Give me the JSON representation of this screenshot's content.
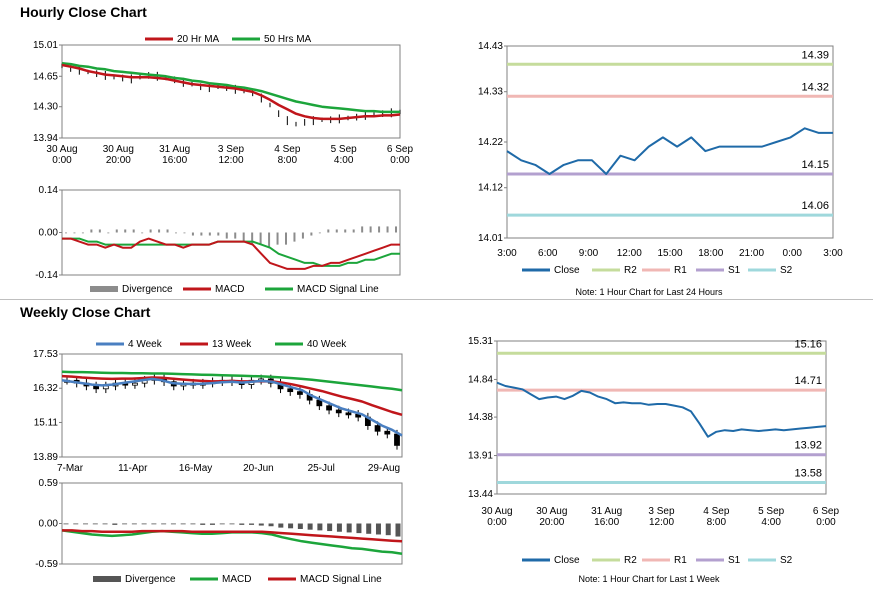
{
  "colors": {
    "ma20": "#c0161b",
    "ma50": "#1ca53b",
    "close": "#1f6aa8",
    "r2": "#c5dc9c",
    "r1": "#f0b7b4",
    "s1": "#b3a0cf",
    "s2": "#9fd8dc",
    "wk4": "#4a7fc1",
    "wk13": "#c0161b",
    "wk40": "#1ca53b",
    "divergence": "#8c8c8c"
  },
  "sections": {
    "hourly_title": "Hourly Close Chart",
    "weekly_title": "Weekly Close Chart"
  },
  "chart_data": [
    {
      "id": "hourly_ma",
      "type": "line",
      "legend": [
        "20 Hr MA",
        "50 Hrs MA"
      ],
      "yticks": [
        "15.01",
        "14.65",
        "14.30",
        "13.94"
      ],
      "ylim": [
        13.94,
        15.01
      ],
      "xticks": [
        [
          "30 Aug",
          "0:00"
        ],
        [
          "30 Aug",
          "20:00"
        ],
        [
          "31 Aug",
          "16:00"
        ],
        [
          "3 Sep",
          "12:00"
        ],
        [
          "4 Sep",
          "8:00"
        ],
        [
          "5 Sep",
          "4:00"
        ],
        [
          "6 Sep",
          "0:00"
        ]
      ],
      "price": [
        14.77,
        14.74,
        14.72,
        14.7,
        14.68,
        14.66,
        14.64,
        14.63,
        14.62,
        14.64,
        14.66,
        14.65,
        14.63,
        14.61,
        14.58,
        14.56,
        14.53,
        14.52,
        14.53,
        14.52,
        14.5,
        14.48,
        14.46,
        14.4,
        14.32,
        14.22,
        14.14,
        14.1,
        14.12,
        14.14,
        14.15,
        14.15,
        14.16,
        14.17,
        14.18,
        14.2,
        14.21,
        14.22,
        14.23,
        14.24
      ],
      "series": [
        {
          "name": "20 Hr MA",
          "values": [
            14.78,
            14.76,
            14.74,
            14.71,
            14.69,
            14.67,
            14.66,
            14.65,
            14.64,
            14.64,
            14.64,
            14.63,
            14.62,
            14.6,
            14.58,
            14.56,
            14.55,
            14.54,
            14.53,
            14.52,
            14.51,
            14.49,
            14.47,
            14.43,
            14.38,
            14.32,
            14.27,
            14.22,
            14.19,
            14.17,
            14.16,
            14.16,
            14.16,
            14.17,
            14.18,
            14.19,
            14.19,
            14.2,
            14.2,
            14.21
          ]
        },
        {
          "name": "50 Hrs MA",
          "values": [
            14.8,
            14.79,
            14.77,
            14.76,
            14.74,
            14.73,
            14.71,
            14.7,
            14.69,
            14.68,
            14.67,
            14.66,
            14.65,
            14.63,
            14.62,
            14.6,
            14.59,
            14.57,
            14.56,
            14.55,
            14.53,
            14.52,
            14.5,
            14.48,
            14.45,
            14.42,
            14.39,
            14.36,
            14.34,
            14.32,
            14.3,
            14.29,
            14.28,
            14.27,
            14.26,
            14.25,
            14.25,
            14.24,
            14.24,
            14.24
          ]
        }
      ]
    },
    {
      "id": "hourly_macd",
      "type": "line",
      "legend": [
        "Divergence",
        "MACD",
        "MACD Signal Line"
      ],
      "yticks": [
        "0.14",
        "0.00",
        "-0.14"
      ],
      "ylim": [
        -0.14,
        0.14
      ],
      "divergence": [
        0.0,
        0.0,
        0.0,
        0.01,
        0.01,
        0.0,
        0.01,
        0.01,
        0.01,
        0.0,
        0.01,
        0.01,
        0.01,
        0.0,
        0.0,
        -0.01,
        -0.01,
        -0.01,
        -0.01,
        -0.02,
        -0.02,
        -0.03,
        -0.04,
        -0.04,
        -0.05,
        -0.04,
        -0.04,
        -0.03,
        -0.02,
        -0.01,
        0.0,
        0.01,
        0.01,
        0.01,
        0.01,
        0.02,
        0.02,
        0.02,
        0.02,
        0.02
      ],
      "series": [
        {
          "name": "MACD",
          "values": [
            -0.02,
            -0.02,
            -0.03,
            -0.04,
            -0.04,
            -0.05,
            -0.04,
            -0.05,
            -0.05,
            -0.03,
            -0.02,
            -0.03,
            -0.04,
            -0.04,
            -0.05,
            -0.04,
            -0.04,
            -0.04,
            -0.03,
            -0.03,
            -0.03,
            -0.03,
            -0.04,
            -0.07,
            -0.1,
            -0.11,
            -0.12,
            -0.12,
            -0.12,
            -0.11,
            -0.11,
            -0.1,
            -0.1,
            -0.09,
            -0.08,
            -0.07,
            -0.06,
            -0.05,
            -0.04,
            -0.04
          ]
        },
        {
          "name": "MACD Signal Line",
          "values": [
            -0.02,
            -0.02,
            -0.02,
            -0.03,
            -0.03,
            -0.04,
            -0.04,
            -0.04,
            -0.04,
            -0.04,
            -0.04,
            -0.04,
            -0.04,
            -0.04,
            -0.04,
            -0.04,
            -0.04,
            -0.04,
            -0.03,
            -0.03,
            -0.03,
            -0.03,
            -0.03,
            -0.04,
            -0.05,
            -0.07,
            -0.08,
            -0.09,
            -0.1,
            -0.1,
            -0.11,
            -0.11,
            -0.11,
            -0.1,
            -0.1,
            -0.09,
            -0.09,
            -0.08,
            -0.07,
            -0.07
          ]
        }
      ]
    },
    {
      "id": "hourly_levels",
      "type": "line",
      "title_note": "Note: 1 Hour Chart for Last 24 Hours",
      "yticks": [
        "14.43",
        "14.33",
        "14.22",
        "14.12",
        "14.01"
      ],
      "ylim": [
        14.01,
        14.43
      ],
      "xticks": [
        "3:00",
        "6:00",
        "9:00",
        "12:00",
        "15:00",
        "18:00",
        "21:00",
        "0:00",
        "3:00"
      ],
      "legend": [
        "Close",
        "R2",
        "R1",
        "S1",
        "S2"
      ],
      "levels": {
        "R2": 14.39,
        "R1": 14.32,
        "S1": 14.15,
        "S2": 14.06
      },
      "level_labels": {
        "R2": "14.39",
        "R1": "14.32",
        "S1": "14.15",
        "S2": "14.06"
      },
      "close": [
        14.2,
        14.18,
        14.17,
        14.15,
        14.17,
        14.18,
        14.18,
        14.15,
        14.19,
        14.18,
        14.21,
        14.23,
        14.21,
        14.23,
        14.2,
        14.21,
        14.21,
        14.21,
        14.21,
        14.22,
        14.23,
        14.25,
        14.24,
        14.24
      ]
    },
    {
      "id": "weekly_ma",
      "type": "line",
      "legend": [
        "4 Week",
        "13 Week",
        "40 Week"
      ],
      "yticks": [
        "17.53",
        "16.32",
        "15.11",
        "13.89"
      ],
      "ylim": [
        13.89,
        17.53
      ],
      "xticks": [
        "7-Mar",
        "11-Apr",
        "16-May",
        "20-Jun",
        "25-Jul",
        "29-Aug"
      ],
      "price": [
        16.6,
        16.5,
        16.4,
        16.3,
        16.4,
        16.5,
        16.45,
        16.5,
        16.6,
        16.7,
        16.55,
        16.4,
        16.5,
        16.45,
        16.5,
        16.55,
        16.6,
        16.55,
        16.45,
        16.6,
        16.65,
        16.5,
        16.3,
        16.2,
        16.1,
        15.9,
        15.7,
        15.55,
        15.45,
        15.4,
        15.3,
        15.0,
        14.8,
        14.7,
        14.3
      ],
      "series": [
        {
          "name": "4 Week",
          "values": [
            16.6,
            16.55,
            16.5,
            16.45,
            16.42,
            16.45,
            16.5,
            16.55,
            16.6,
            16.65,
            16.6,
            16.5,
            16.48,
            16.47,
            16.48,
            16.5,
            16.53,
            16.55,
            16.52,
            16.55,
            16.58,
            16.55,
            16.45,
            16.35,
            16.25,
            16.05,
            15.9,
            15.75,
            15.6,
            15.5,
            15.4,
            15.2,
            15.0,
            14.85,
            14.65
          ]
        },
        {
          "name": "13 Week",
          "values": [
            16.75,
            16.73,
            16.7,
            16.68,
            16.66,
            16.65,
            16.66,
            16.66,
            16.68,
            16.7,
            16.69,
            16.66,
            16.63,
            16.6,
            16.58,
            16.56,
            16.57,
            16.58,
            16.56,
            16.56,
            16.57,
            16.56,
            16.52,
            16.46,
            16.38,
            16.3,
            16.22,
            16.12,
            16.02,
            15.94,
            15.85,
            15.72,
            15.6,
            15.48,
            15.38
          ]
        },
        {
          "name": "40 Week",
          "values": [
            16.9,
            16.89,
            16.89,
            16.88,
            16.87,
            16.86,
            16.86,
            16.85,
            16.85,
            16.84,
            16.84,
            16.83,
            16.82,
            16.81,
            16.8,
            16.79,
            16.78,
            16.77,
            16.76,
            16.75,
            16.74,
            16.72,
            16.7,
            16.68,
            16.65,
            16.62,
            16.58,
            16.54,
            16.5,
            16.46,
            16.42,
            16.38,
            16.34,
            16.3,
            16.25
          ]
        }
      ]
    },
    {
      "id": "weekly_macd",
      "type": "line",
      "legend": [
        "Divergence",
        "MACD",
        "MACD Signal Line"
      ],
      "yticks": [
        "0.59",
        "0.00",
        "-0.59"
      ],
      "ylim": [
        -0.59,
        0.59
      ],
      "divergence": [
        0.0,
        0.0,
        -0.01,
        -0.01,
        -0.01,
        -0.02,
        -0.01,
        -0.01,
        -0.01,
        0.0,
        0.0,
        -0.01,
        -0.01,
        -0.01,
        -0.02,
        -0.02,
        -0.01,
        -0.01,
        -0.02,
        -0.02,
        -0.03,
        -0.04,
        -0.06,
        -0.07,
        -0.08,
        -0.09,
        -0.1,
        -0.11,
        -0.12,
        -0.13,
        -0.14,
        -0.15,
        -0.16,
        -0.17,
        -0.19
      ],
      "series": [
        {
          "name": "MACD",
          "values": [
            -0.1,
            -0.12,
            -0.14,
            -0.16,
            -0.17,
            -0.18,
            -0.17,
            -0.16,
            -0.14,
            -0.12,
            -0.11,
            -0.12,
            -0.13,
            -0.14,
            -0.15,
            -0.15,
            -0.14,
            -0.13,
            -0.13,
            -0.13,
            -0.14,
            -0.16,
            -0.2,
            -0.23,
            -0.26,
            -0.28,
            -0.3,
            -0.32,
            -0.34,
            -0.36,
            -0.37,
            -0.39,
            -0.41,
            -0.42,
            -0.44
          ]
        },
        {
          "name": "MACD Signal Line",
          "values": [
            -0.1,
            -0.1,
            -0.11,
            -0.11,
            -0.12,
            -0.12,
            -0.12,
            -0.12,
            -0.11,
            -0.11,
            -0.11,
            -0.11,
            -0.11,
            -0.12,
            -0.12,
            -0.12,
            -0.12,
            -0.12,
            -0.12,
            -0.12,
            -0.12,
            -0.13,
            -0.14,
            -0.15,
            -0.16,
            -0.17,
            -0.18,
            -0.19,
            -0.2,
            -0.21,
            -0.22,
            -0.23,
            -0.24,
            -0.25,
            -0.26
          ]
        }
      ]
    },
    {
      "id": "weekly_levels",
      "type": "line",
      "title_note": "Note: 1 Hour Chart for Last 1 Week",
      "yticks": [
        "15.31",
        "14.84",
        "14.38",
        "13.91",
        "13.44"
      ],
      "ylim": [
        13.44,
        15.31
      ],
      "xticks": [
        [
          "30 Aug",
          "0:00"
        ],
        [
          "30 Aug",
          "20:00"
        ],
        [
          "31 Aug",
          "16:00"
        ],
        [
          "3 Sep",
          "12:00"
        ],
        [
          "4 Sep",
          "8:00"
        ],
        [
          "5 Sep",
          "4:00"
        ],
        [
          "6 Sep",
          "0:00"
        ]
      ],
      "legend": [
        "Close",
        "R2",
        "R1",
        "S1",
        "S2"
      ],
      "levels": {
        "R2": 15.16,
        "R1": 14.71,
        "S1": 13.92,
        "S2": 13.58
      },
      "level_labels": {
        "R2": "15.16",
        "R1": "14.71",
        "S1": "13.92",
        "S2": "13.58"
      },
      "close": [
        14.8,
        14.76,
        14.74,
        14.72,
        14.66,
        14.6,
        14.62,
        14.63,
        14.6,
        14.64,
        14.7,
        14.68,
        14.63,
        14.6,
        14.55,
        14.56,
        14.55,
        14.55,
        14.53,
        14.54,
        14.54,
        14.52,
        14.5,
        14.45,
        14.3,
        14.14,
        14.2,
        14.22,
        14.21,
        14.23,
        14.22,
        14.21,
        14.22,
        14.23,
        14.22,
        14.23,
        14.24,
        14.25,
        14.26,
        14.27
      ]
    }
  ]
}
